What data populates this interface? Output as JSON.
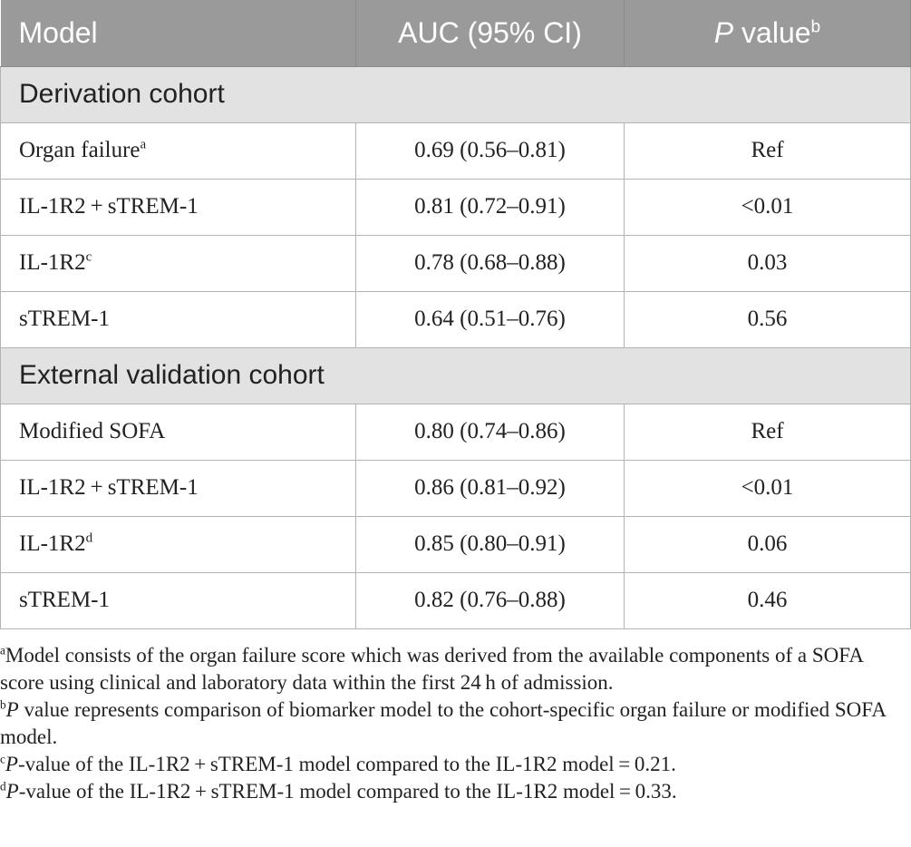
{
  "table": {
    "headers": {
      "model": "Model",
      "auc": "AUC (95% CI)",
      "p_italic": "P",
      "p_rest": " value",
      "p_sup": "b"
    },
    "sections": [
      {
        "title": "Derivation cohort",
        "rows": [
          {
            "model": "Organ failure",
            "sup": "a",
            "auc": "0.69 (0.56–0.81)",
            "p": "Ref"
          },
          {
            "model": "IL-1R2 + sTREM-1",
            "sup": "",
            "auc": "0.81 (0.72–0.91)",
            "p": "<0.01"
          },
          {
            "model": "IL-1R2",
            "sup": "c",
            "auc": "0.78 (0.68–0.88)",
            "p": "0.03"
          },
          {
            "model": "sTREM-1",
            "sup": "",
            "auc": "0.64 (0.51–0.76)",
            "p": "0.56"
          }
        ]
      },
      {
        "title": "External validation cohort",
        "rows": [
          {
            "model": "Modified SOFA",
            "sup": "",
            "auc": "0.80 (0.74–0.86)",
            "p": "Ref"
          },
          {
            "model": "IL-1R2 + sTREM-1",
            "sup": "",
            "auc": "0.86 (0.81–0.92)",
            "p": "<0.01"
          },
          {
            "model": "IL-1R2",
            "sup": "d",
            "auc": "0.85 (0.80–0.91)",
            "p": "0.06"
          },
          {
            "model": "sTREM-1",
            "sup": "",
            "auc": "0.82 (0.76–0.88)",
            "p": "0.46"
          }
        ]
      }
    ]
  },
  "footnotes": {
    "a": {
      "mark": "a",
      "text": "Model consists of the organ failure score which was derived from the available components of a SOFA score using clinical and laboratory data within the first 24 h of admission."
    },
    "b": {
      "mark": "b",
      "italic": "P",
      "text": " value represents comparison of biomarker model to the cohort-specific organ failure or modified SOFA model."
    },
    "c": {
      "mark": "c",
      "italic": "P",
      "text": "-value of the IL-1R2 + sTREM-1 model compared to the IL-1R2 model = 0.21."
    },
    "d": {
      "mark": "d",
      "italic": "P",
      "text": "-value of the IL-1R2 + sTREM-1 model compared to the IL-1R2 model = 0.33."
    }
  }
}
